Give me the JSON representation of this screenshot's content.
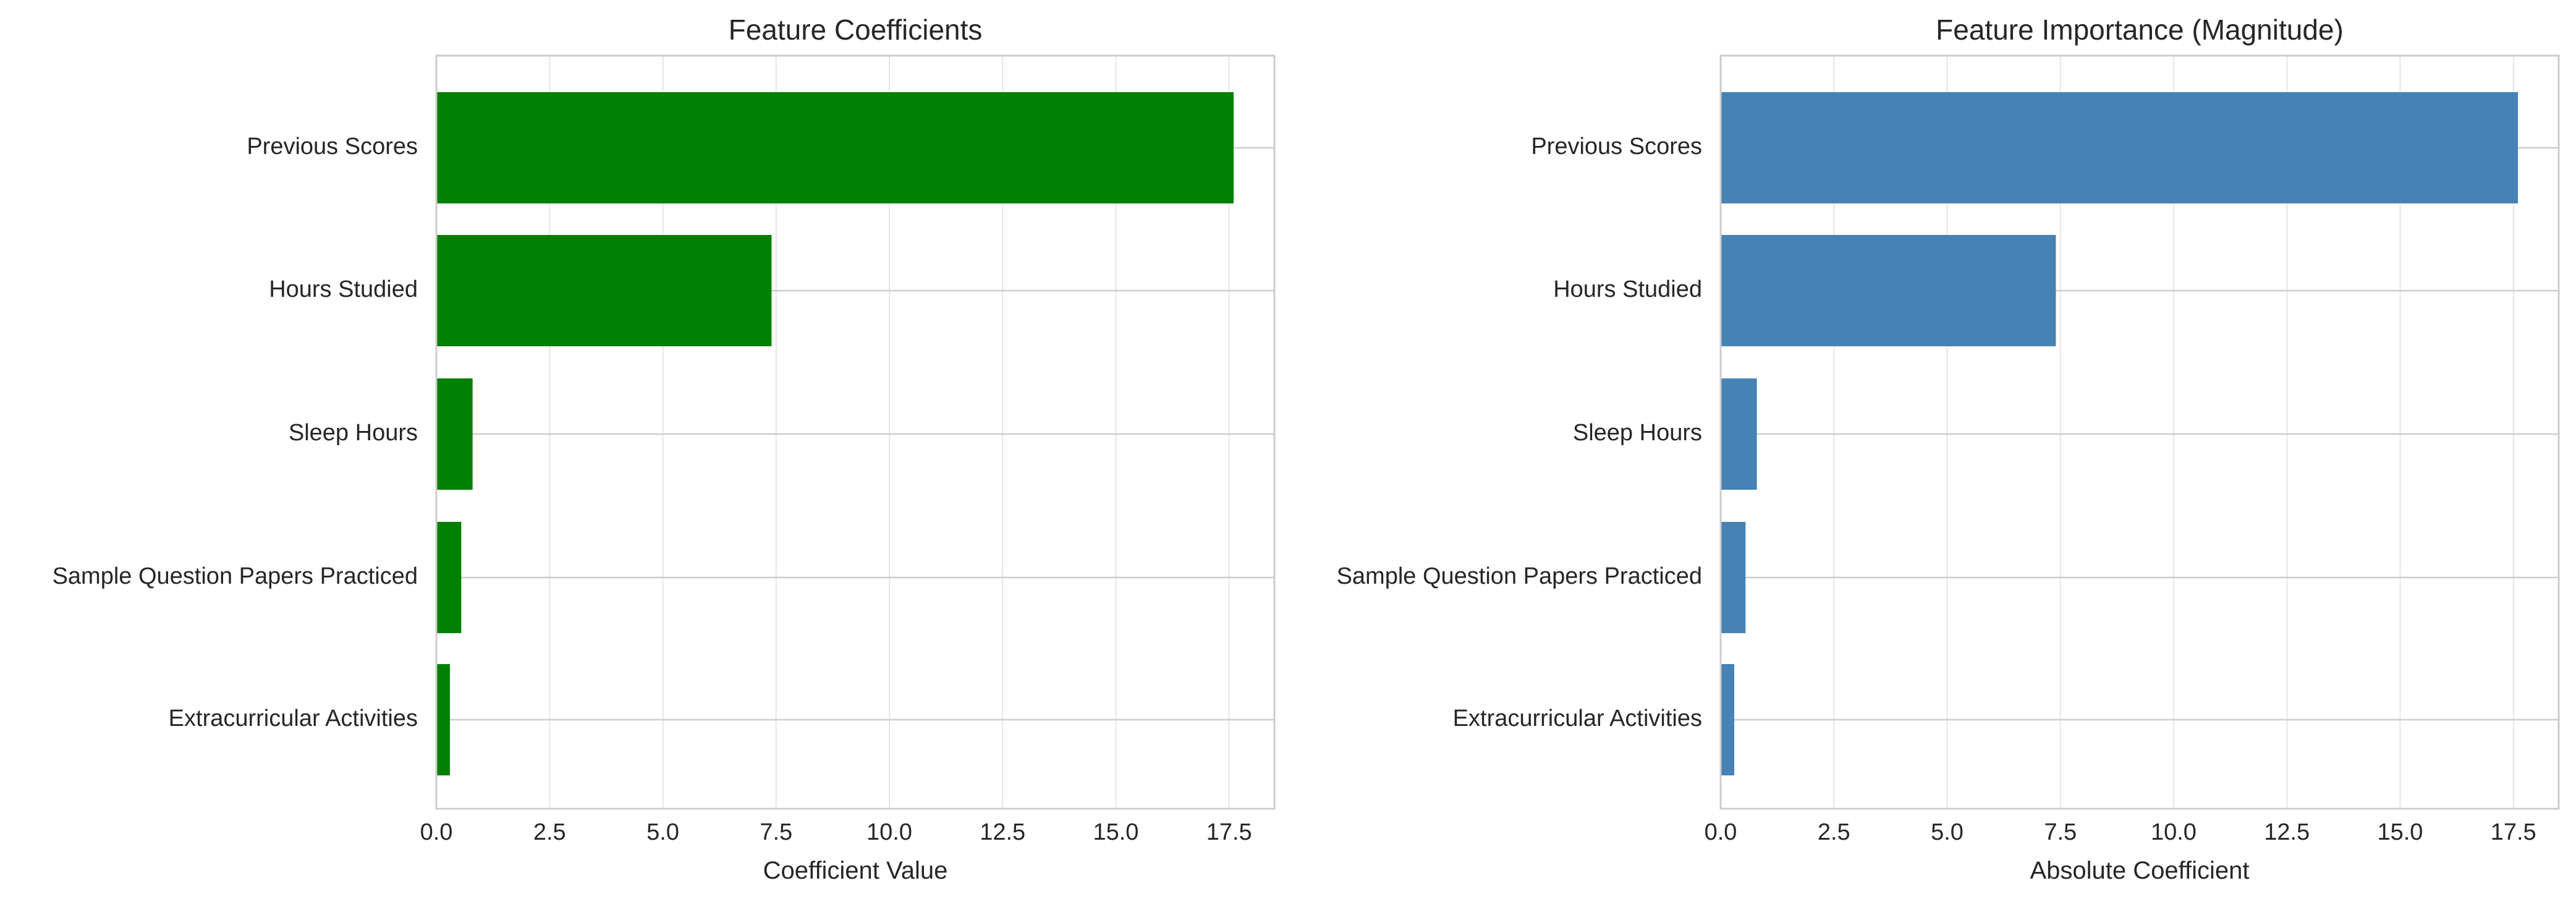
{
  "chart_data": [
    {
      "type": "bar",
      "orientation": "horizontal",
      "title": "Feature Coefficients",
      "xlabel": "Coefficient Value",
      "ylabel": "",
      "categories": [
        "Previous Scores",
        "Hours Studied",
        "Sleep Hours",
        "Sample Question Papers Practiced",
        "Extracurricular Activities"
      ],
      "values": [
        17.6,
        7.4,
        0.8,
        0.55,
        0.3
      ],
      "xlim": [
        0,
        18.5
      ],
      "xticks": [
        "0.0",
        "2.5",
        "5.0",
        "7.5",
        "10.0",
        "12.5",
        "15.0",
        "17.5"
      ],
      "xtick_values": [
        0,
        2.5,
        5,
        7.5,
        10,
        12.5,
        15,
        17.5
      ],
      "grid": true,
      "color": "#008000"
    },
    {
      "type": "bar",
      "orientation": "horizontal",
      "title": "Feature Importance (Magnitude)",
      "xlabel": "Absolute Coefficient",
      "ylabel": "",
      "categories": [
        "Previous Scores",
        "Hours Studied",
        "Sleep Hours",
        "Sample Question Papers Practiced",
        "Extracurricular Activities"
      ],
      "values": [
        17.6,
        7.4,
        0.8,
        0.55,
        0.3
      ],
      "xlim": [
        0,
        18.5
      ],
      "xticks": [
        "0.0",
        "2.5",
        "5.0",
        "7.5",
        "10.0",
        "12.5",
        "15.0",
        "17.5"
      ],
      "xtick_values": [
        0,
        2.5,
        5,
        7.5,
        10,
        12.5,
        15,
        17.5
      ],
      "grid": true,
      "color": "#4682b4"
    }
  ]
}
